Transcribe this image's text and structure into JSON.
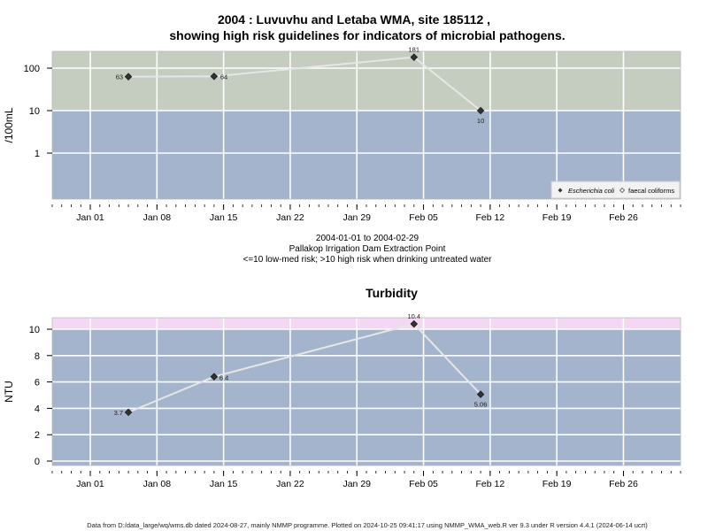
{
  "chart1": {
    "title_line1": "2004 : Luvuvhu and Letaba WMA, site 185112 ,",
    "title_line2": "showing high risk guidelines for indicators of microbial pathogens.",
    "ylabel": "/100mL",
    "ylog": true,
    "yticks": [
      1,
      10,
      100
    ],
    "threshold": 10,
    "zone_colors": {
      "low": "#a3b4cc",
      "high": "#c4cdc0"
    },
    "legend": {
      "position": "bottom-right",
      "items": [
        "Escherichia coli",
        "faecal coliforms"
      ]
    }
  },
  "caption": {
    "line1": "2004-01-01 to 2004-02-29",
    "line2": "Pallakop Irrigation Dam Extraction Point",
    "line3": "<=10 low-med risk; >10 high risk when drinking untreated water"
  },
  "chart2": {
    "title": "Turbidity",
    "ylabel": "NTU",
    "yticks": [
      0,
      2,
      4,
      6,
      8,
      10
    ],
    "threshold": 10,
    "zone_colors": {
      "low": "#a3b4cc",
      "high": "#f2d8f2"
    }
  },
  "xticks": [
    "Jan 01",
    "Jan 08",
    "Jan 15",
    "Jan 22",
    "Jan 29",
    "Feb 05",
    "Feb 12",
    "Feb 19",
    "Feb 26"
  ],
  "footer": "Data from D:/data_large/wq/wms.db dated 2024-08-27, mainly NMMP programme. Plotted on 2024-10-25 09:41:17 using NMMP_WMA_web.R ver 9.3 under R version 4.4.1 (2024-06-14 ucrt)",
  "chart_data": [
    {
      "type": "line",
      "title": "2004 : Luvuvhu and Letaba WMA, site 185112 , showing high risk guidelines for indicators of microbial pathogens.",
      "ylabel": "/100mL",
      "yscale": "log",
      "series": [
        {
          "name": "Escherichia coli",
          "x": [
            "2004-01-05",
            "2004-01-14",
            "2004-02-04",
            "2004-02-11"
          ],
          "values": [
            63,
            64,
            181,
            10
          ],
          "labels": [
            "63",
            "64",
            "181",
            "10"
          ]
        }
      ]
    },
    {
      "type": "line",
      "title": "Turbidity",
      "ylabel": "NTU",
      "ylim": [
        0,
        10.8
      ],
      "series": [
        {
          "x": [
            "2004-01-05",
            "2004-01-14",
            "2004-02-04",
            "2004-02-11"
          ],
          "values": [
            3.7,
            6.4,
            10.4,
            5.06
          ],
          "labels": [
            "3.7",
            "6.4",
            "10.4",
            "5.06"
          ]
        }
      ]
    }
  ]
}
